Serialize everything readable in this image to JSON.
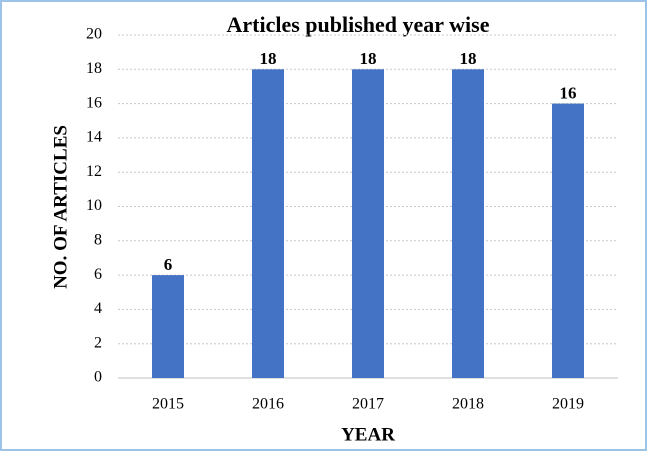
{
  "chart_data": {
    "type": "bar",
    "title": "Articles published year wise",
    "x_label": "YEAR",
    "y_label": "NO. OF ARTICLES",
    "categories": [
      "2015",
      "2016",
      "2017",
      "2018",
      "2019"
    ],
    "values": [
      6,
      18,
      18,
      18,
      16
    ],
    "color": "#4472c4",
    "ylim": [
      0,
      20
    ],
    "yticks": [
      0,
      2,
      4,
      6,
      8,
      10,
      12,
      14,
      16,
      18,
      20
    ],
    "grid": true
  }
}
